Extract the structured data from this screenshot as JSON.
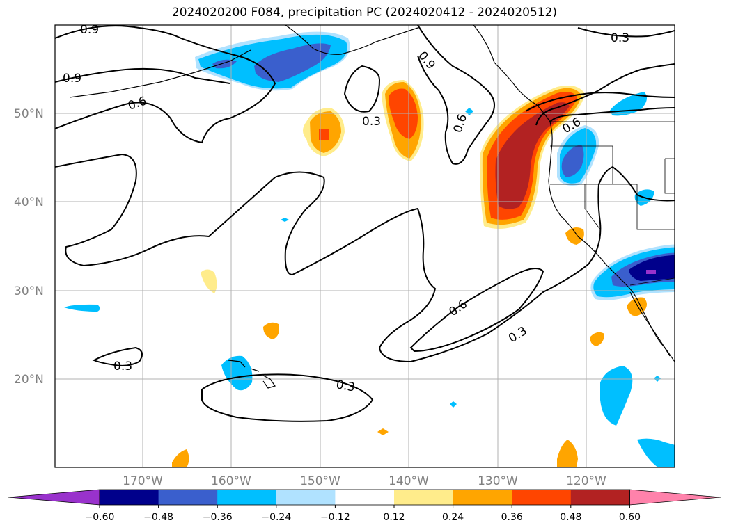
{
  "title": "2024020200 F084, precipitation PC (2024020412 - 2024020512)",
  "map": {
    "lat_labels": [
      "50°N",
      "40°N",
      "30°N",
      "20°N"
    ],
    "lon_labels": [
      "170°W",
      "160°W",
      "150°W",
      "140°W",
      "130°W",
      "120°W"
    ],
    "contour_labels": [
      "0.9",
      "0.9",
      "0.6",
      "0.9",
      "0.3",
      "0.6",
      "0.3",
      "0.6",
      "0.6",
      "0.3",
      "0.3",
      "0.3"
    ]
  },
  "colorbar": {
    "ticks": [
      "−0.60",
      "−0.48",
      "−0.36",
      "−0.24",
      "−0.12",
      "0.12",
      "0.24",
      "0.36",
      "0.48",
      "0.60"
    ],
    "colors": [
      "#9932cc",
      "#00008b",
      "#3a5fcd",
      "#00bfff",
      "#b0e2ff",
      "#ffffff",
      "#ffec8b",
      "#ffa500",
      "#ff4500",
      "#b22222",
      "#ff82ab"
    ]
  },
  "colors": {
    "coast": "#000000",
    "grid": "#b0b0b0",
    "contour": "#000000"
  }
}
